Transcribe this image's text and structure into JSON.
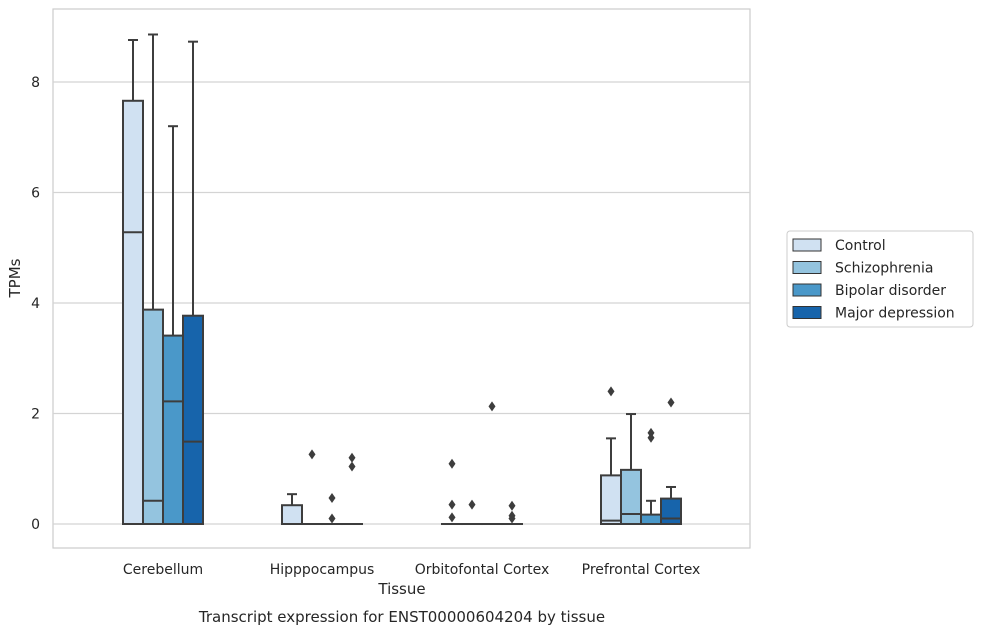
{
  "chart_data": {
    "type": "box",
    "title": "",
    "caption": "Transcript expression for ENST00000604204 by tissue",
    "xlabel": "Tissue",
    "ylabel": "TPMs",
    "ylim": [
      -0.42,
      9.3
    ],
    "yticks": [
      0,
      2,
      4,
      6,
      8
    ],
    "grid": "horizontal",
    "legend_position": "right",
    "categories": [
      "Cerebellum",
      "Hipppocampus",
      "Orbitofontal Cortex",
      "Prefrontal Cortex"
    ],
    "series": [
      {
        "name": "Control",
        "color": "#d0e1f2",
        "boxes": [
          {
            "q1": 0,
            "median": 5.28,
            "q3": 7.66,
            "whisker_low": 0,
            "whisker_high": 8.76,
            "outliers": []
          },
          {
            "q1": 0,
            "median": 0,
            "q3": 0.34,
            "whisker_low": 0,
            "whisker_high": 0.54,
            "outliers": []
          },
          {
            "q1": 0,
            "median": 0,
            "q3": 0,
            "whisker_low": 0,
            "whisker_high": 0,
            "outliers": [
              1.09,
              0.35,
              0.12
            ]
          },
          {
            "q1": 0,
            "median": 0.06,
            "q3": 0.88,
            "whisker_low": 0,
            "whisker_high": 1.55,
            "outliers": [
              2.4
            ]
          }
        ]
      },
      {
        "name": "Schizophrenia",
        "color": "#94c4df",
        "boxes": [
          {
            "q1": 0,
            "median": 0.42,
            "q3": 3.88,
            "whisker_low": 0,
            "whisker_high": 8.86,
            "outliers": []
          },
          {
            "q1": 0,
            "median": 0,
            "q3": 0,
            "whisker_low": 0,
            "whisker_high": 0,
            "outliers": [
              1.26
            ]
          },
          {
            "q1": 0,
            "median": 0,
            "q3": 0,
            "whisker_low": 0,
            "whisker_high": 0,
            "outliers": [
              0.35
            ]
          },
          {
            "q1": 0,
            "median": 0.18,
            "q3": 0.98,
            "whisker_low": 0,
            "whisker_high": 1.99,
            "outliers": []
          }
        ]
      },
      {
        "name": "Bipolar disorder",
        "color": "#4a98c9",
        "boxes": [
          {
            "q1": 0,
            "median": 2.22,
            "q3": 3.41,
            "whisker_low": 0,
            "whisker_high": 7.2,
            "outliers": []
          },
          {
            "q1": 0,
            "median": 0,
            "q3": 0,
            "whisker_low": 0,
            "whisker_high": 0,
            "outliers": [
              0.47,
              0.1
            ]
          },
          {
            "q1": 0,
            "median": 0,
            "q3": 0,
            "whisker_low": 0,
            "whisker_high": 0,
            "outliers": [
              2.13
            ]
          },
          {
            "q1": 0,
            "median": 0,
            "q3": 0.17,
            "whisker_low": 0,
            "whisker_high": 0.42,
            "outliers": [
              1.65,
              1.56
            ]
          }
        ]
      },
      {
        "name": "Major depression",
        "color": "#1764ab",
        "boxes": [
          {
            "q1": 0,
            "median": 1.49,
            "q3": 3.77,
            "whisker_low": 0,
            "whisker_high": 8.73,
            "outliers": []
          },
          {
            "q1": 0,
            "median": 0,
            "q3": 0,
            "whisker_low": 0,
            "whisker_high": 0,
            "outliers": [
              1.2,
              1.04
            ]
          },
          {
            "q1": 0,
            "median": 0,
            "q3": 0,
            "whisker_low": 0,
            "whisker_high": 0,
            "outliers": [
              0.33,
              0.15,
              0.1
            ]
          },
          {
            "q1": 0,
            "median": 0.1,
            "q3": 0.46,
            "whisker_low": 0,
            "whisker_high": 0.67,
            "outliers": [
              2.2
            ]
          }
        ]
      }
    ]
  }
}
